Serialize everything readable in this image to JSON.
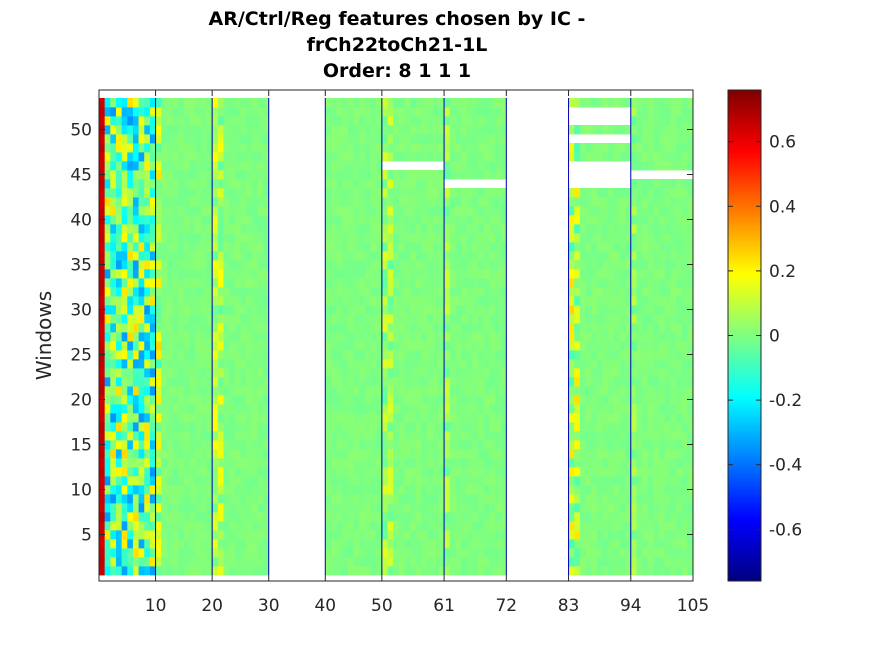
{
  "chart_data": {
    "type": "heatmap",
    "title": [
      "AR/Ctrl/Reg features chosen by IC -",
      "frCh22toCh21-1L",
      "Order: 8 1 1 1"
    ],
    "xlabel": "",
    "ylabel": "Windows",
    "x_tick_labels": [
      "10",
      "20",
      "30",
      "40",
      "50",
      "61",
      "72",
      "83",
      "94",
      "105"
    ],
    "x_tick_values": [
      10,
      20,
      30,
      40,
      50,
      61,
      72,
      83,
      94,
      105
    ],
    "y_tick_labels": [
      "5",
      "10",
      "15",
      "20",
      "25",
      "30",
      "35",
      "40",
      "45",
      "50"
    ],
    "y_tick_values": [
      5,
      10,
      15,
      20,
      25,
      30,
      35,
      40,
      45,
      50
    ],
    "xlim": [
      0,
      105
    ],
    "ylim": [
      1,
      53
    ],
    "n_windows": 53,
    "n_features": 105,
    "colormap": "jet",
    "clim": [
      -0.76,
      0.76
    ],
    "colorbar_tick_labels": [
      "-0.6",
      "-0.4",
      "-0.2",
      "0",
      "0.2",
      "0.4",
      "0.6"
    ],
    "colorbar_tick_values": [
      -0.6,
      -0.4,
      -0.2,
      0,
      0.2,
      0.4,
      0.6
    ],
    "group_boundaries": [
      10,
      20,
      30,
      40,
      50,
      61,
      72,
      83,
      94
    ],
    "group_boundary_color": "#0000b4",
    "empty_feature_ranges": [
      [
        31,
        40
      ],
      [
        73,
        83
      ]
    ],
    "empty_cells": [
      {
        "features": [
          51,
          61
        ],
        "windows": [
          46,
          46
        ]
      },
      {
        "features": [
          62,
          72
        ],
        "windows": [
          44,
          44
        ]
      },
      {
        "features": [
          84,
          94
        ],
        "windows": [
          44,
          46
        ]
      },
      {
        "features": [
          84,
          94
        ],
        "windows": [
          49,
          49
        ]
      },
      {
        "features": [
          84,
          94
        ],
        "windows": [
          51,
          52
        ]
      },
      {
        "features": [
          95,
          105
        ],
        "windows": [
          45,
          45
        ]
      }
    ],
    "feature_values": {
      "1": 0.68,
      "default_range": [
        -0.02,
        0.02
      ],
      "variable_features": {
        "2-10": [
          -0.35,
          0.25
        ],
        "11": [
          -0.1,
          0.25
        ],
        "21-22": [
          -0.05,
          0.2
        ],
        "51-52": [
          -0.05,
          0.15
        ],
        "62": [
          -0.05,
          0.12
        ],
        "84-85": [
          -0.1,
          0.25
        ],
        "95": [
          -0.05,
          0.12
        ]
      }
    },
    "grid": false
  }
}
